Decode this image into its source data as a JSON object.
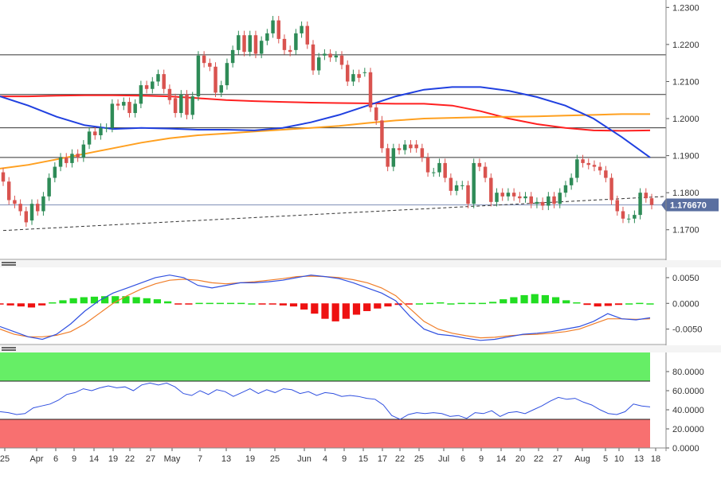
{
  "chart_data": [
    {
      "type": "candlestick",
      "panel": "price",
      "instrument_price": "1.176670",
      "ylim": [
        1.162,
        1.232
      ],
      "y_ticks": [
        "1.2300",
        "1.2200",
        "1.2100",
        "1.2000",
        "1.1900",
        "1.1800",
        "1.1700"
      ],
      "horizontal_levels": [
        1.2172,
        1.2065,
        1.1975,
        1.1895
      ],
      "current_price_line": 1.1767,
      "trendline": {
        "from": [
          0,
          1.1698
        ],
        "to": [
          138,
          1.179
        ],
        "style": "dashed"
      },
      "ma_series": [
        {
          "color": "#ff2020",
          "values": [
            1.206,
            1.206,
            1.2062,
            1.2063,
            1.2063,
            1.2062,
            1.206,
            1.2055,
            1.205,
            1.2047,
            1.2045,
            1.2043,
            1.2042,
            1.2041,
            1.204,
            1.204,
            1.2035,
            1.202,
            1.2,
            1.1985,
            1.1975,
            1.1968,
            1.1967,
            1.1968
          ]
        },
        {
          "color": "#ffa020",
          "values": [
            1.1865,
            1.1875,
            1.189,
            1.1905,
            1.192,
            1.1935,
            1.1947,
            1.1955,
            1.196,
            1.1965,
            1.197,
            1.1975,
            1.198,
            1.1988,
            1.1995,
            1.2,
            1.2002,
            1.2004,
            1.2005,
            1.2006,
            1.2008,
            1.201,
            1.2012,
            1.2012
          ]
        },
        {
          "color": "#2040e0",
          "values": [
            1.206,
            1.2035,
            1.2005,
            1.1982,
            1.1972,
            1.1975,
            1.1973,
            1.197,
            1.197,
            1.1968,
            1.1975,
            1.199,
            1.201,
            1.2035,
            1.206,
            1.2078,
            1.2085,
            1.2085,
            1.2075,
            1.2058,
            1.2035,
            1.2,
            1.195,
            1.1895
          ]
        }
      ],
      "candles": [
        [
          1.1855,
          1.183
        ],
        [
          1.183,
          1.178
        ],
        [
          1.178,
          1.177
        ],
        [
          1.177,
          1.175
        ],
        [
          1.175,
          1.172
        ],
        [
          1.1725,
          1.177
        ],
        [
          1.177,
          1.175
        ],
        [
          1.175,
          1.179
        ],
        [
          1.179,
          1.184
        ],
        [
          1.184,
          1.187
        ],
        [
          1.187,
          1.1895
        ],
        [
          1.1895,
          1.188
        ],
        [
          1.188,
          1.1905
        ],
        [
          1.1905,
          1.1895
        ],
        [
          1.1895,
          1.193
        ],
        [
          1.193,
          1.1965
        ],
        [
          1.1965,
          1.1955
        ],
        [
          1.1955,
          1.1975
        ],
        [
          1.1975,
          1.1975
        ],
        [
          1.1975,
          1.204
        ],
        [
          1.204,
          1.2035
        ],
        [
          1.2035,
          1.2045
        ],
        [
          1.2045,
          1.2015
        ],
        [
          1.2015,
          1.204
        ],
        [
          1.204,
          1.209
        ],
        [
          1.209,
          1.208
        ],
        [
          1.208,
          1.21
        ],
        [
          1.21,
          1.212
        ],
        [
          1.212,
          1.208
        ],
        [
          1.208,
          1.205
        ],
        [
          1.2055,
          1.2015
        ],
        [
          1.2015,
          1.2065
        ],
        [
          1.2065,
          1.201
        ],
        [
          1.201,
          1.206
        ],
        [
          1.206,
          1.217
        ],
        [
          1.217,
          1.215
        ],
        [
          1.215,
          1.214
        ],
        [
          1.214,
          1.207
        ],
        [
          1.207,
          1.209
        ],
        [
          1.209,
          1.215
        ],
        [
          1.215,
          1.2185
        ],
        [
          1.2185,
          1.2225
        ],
        [
          1.2225,
          1.218
        ],
        [
          1.218,
          1.2225
        ],
        [
          1.2225,
          1.2175
        ],
        [
          1.2175,
          1.221
        ],
        [
          1.221,
          1.223
        ],
        [
          1.223,
          1.2265
        ],
        [
          1.2265,
          1.2215
        ],
        [
          1.2215,
          1.2185
        ],
        [
          1.2185,
          1.218
        ],
        [
          1.2185,
          1.223
        ],
        [
          1.223,
          1.225
        ],
        [
          1.225,
          1.22
        ],
        [
          1.22,
          1.213
        ],
        [
          1.213,
          1.2165
        ],
        [
          1.217,
          1.2175
        ],
        [
          1.2175,
          1.2165
        ],
        [
          1.2165,
          1.217
        ],
        [
          1.217,
          1.2145
        ],
        [
          1.2145,
          1.21
        ],
        [
          1.21,
          1.212
        ],
        [
          1.212,
          1.211
        ],
        [
          1.2125,
          1.2125
        ],
        [
          1.2125,
          1.203
        ],
        [
          1.203,
          1.1995
        ],
        [
          1.1995,
          1.192
        ],
        [
          1.192,
          1.187
        ],
        [
          1.187,
          1.192
        ],
        [
          1.192,
          1.1915
        ],
        [
          1.1915,
          1.193
        ],
        [
          1.193,
          1.192
        ],
        [
          1.193,
          1.192
        ],
        [
          1.192,
          1.1895
        ],
        [
          1.1895,
          1.1855
        ],
        [
          1.1855,
          1.1855
        ],
        [
          1.1855,
          1.188
        ],
        [
          1.188,
          1.184
        ],
        [
          1.184,
          1.1805
        ],
        [
          1.1805,
          1.182
        ],
        [
          1.182,
          1.182
        ],
        [
          1.182,
          1.177
        ],
        [
          1.177,
          1.188
        ],
        [
          1.188,
          1.187
        ],
        [
          1.187,
          1.184
        ],
        [
          1.184,
          1.1775
        ],
        [
          1.1775,
          1.18
        ],
        [
          1.18,
          1.179
        ],
        [
          1.179,
          1.18
        ],
        [
          1.18,
          1.179
        ],
        [
          1.179,
          1.1785
        ],
        [
          1.1785,
          1.179
        ],
        [
          1.179,
          1.177
        ],
        [
          1.177,
          1.1775
        ],
        [
          1.1775,
          1.1765
        ],
        [
          1.1765,
          1.179
        ],
        [
          1.179,
          1.177
        ],
        [
          1.177,
          1.18
        ],
        [
          1.18,
          1.182
        ],
        [
          1.182,
          1.184
        ],
        [
          1.184,
          1.189
        ],
        [
          1.189,
          1.188
        ],
        [
          1.188,
          1.1875
        ],
        [
          1.1875,
          1.187
        ],
        [
          1.187,
          1.186
        ],
        [
          1.186,
          1.184
        ],
        [
          1.184,
          1.178
        ],
        [
          1.178,
          1.175
        ],
        [
          1.175,
          1.173
        ],
        [
          1.173,
          1.173
        ],
        [
          1.173,
          1.174
        ],
        [
          1.174,
          1.18
        ],
        [
          1.18,
          1.1785
        ],
        [
          1.1785,
          1.1767
        ]
      ]
    },
    {
      "type": "macd",
      "panel": "macd",
      "ylim": [
        -0.008,
        0.007
      ],
      "y_ticks": [
        "0.0050",
        "0.0000",
        "-0.0050"
      ],
      "macd_line": [
        -0.0045,
        -0.0055,
        -0.0065,
        -0.007,
        -0.006,
        -0.004,
        -0.0015,
        0.0005,
        0.002,
        0.003,
        0.004,
        0.005,
        0.0055,
        0.005,
        0.0035,
        0.003,
        0.0035,
        0.004,
        0.004,
        0.0042,
        0.0045,
        0.005,
        0.0055,
        0.0052,
        0.0048,
        0.004,
        0.003,
        0.002,
        0.0005,
        -0.0025,
        -0.005,
        -0.006,
        -0.0063,
        -0.0068,
        -0.0072,
        -0.007,
        -0.0065,
        -0.006,
        -0.0058,
        -0.0055,
        -0.005,
        -0.0045,
        -0.0035,
        -0.002,
        -0.003,
        -0.0032,
        -0.0028
      ],
      "signal_line": [
        -0.005,
        -0.006,
        -0.0065,
        -0.0065,
        -0.0062,
        -0.0055,
        -0.004,
        -0.002,
        0.0,
        0.0015,
        0.0028,
        0.0038,
        0.0045,
        0.0047,
        0.0045,
        0.004,
        0.0038,
        0.004,
        0.0042,
        0.0045,
        0.0048,
        0.0052,
        0.0053,
        0.0052,
        0.005,
        0.0046,
        0.004,
        0.003,
        0.0015,
        -0.001,
        -0.0035,
        -0.005,
        -0.0058,
        -0.0063,
        -0.0067,
        -0.0066,
        -0.0063,
        -0.0061,
        -0.006,
        -0.0058,
        -0.0055,
        -0.005,
        -0.004,
        -0.003,
        -0.003,
        -0.0031,
        -0.003
      ],
      "histogram": [
        -0.0002,
        -0.0004,
        -0.0006,
        -0.0008,
        -0.0004,
        0.0002,
        0.0006,
        0.001,
        0.0012,
        0.0013,
        0.0014,
        0.0014,
        0.0014,
        0.0012,
        0.001,
        0.0008,
        0.0004,
        -0.0002,
        -0.0002,
        0.0001,
        0.0001,
        0.0001,
        0.0001,
        0.0001,
        0.0,
        -0.0001,
        -0.0002,
        -0.0004,
        -0.0006,
        -0.0012,
        -0.002,
        -0.003,
        -0.0035,
        -0.003,
        -0.0022,
        -0.0015,
        -0.001,
        -0.0006,
        -0.0003,
        -0.0001,
        0.0,
        0.0001,
        0.0002,
        0.0,
        0.0001,
        0.0001,
        0.0001,
        0.0003,
        0.0008,
        0.0012,
        0.0016,
        0.0018,
        0.0016,
        0.0012,
        0.0006,
        0.0002,
        -0.0003,
        -0.0006,
        -0.0005,
        -0.0003,
        0.0,
        0.0001,
        0.0
      ]
    },
    {
      "type": "line",
      "panel": "rsi",
      "ylim": [
        0,
        100
      ],
      "y_ticks": [
        "80.0000",
        "60.0000",
        "40.0000",
        "20.0000",
        "0.0000"
      ],
      "overbought": 70,
      "oversold": 30,
      "values": [
        38,
        37,
        35,
        36,
        42,
        44,
        46,
        50,
        56,
        58,
        62,
        60,
        63,
        65,
        63,
        64,
        60,
        66,
        68,
        66,
        68,
        64,
        57,
        55,
        60,
        56,
        61,
        59,
        54,
        58,
        62,
        57,
        61,
        58,
        62,
        61,
        57,
        59,
        55,
        58,
        57,
        54,
        55,
        54,
        52,
        51,
        45,
        34,
        30,
        35,
        37,
        36,
        37,
        36,
        33,
        34,
        31,
        37,
        36,
        39,
        33,
        37,
        38,
        36,
        40,
        44,
        49,
        53,
        51,
        52,
        48,
        45,
        40,
        36,
        35,
        38,
        46,
        44,
        43
      ],
      "x_labels": [
        "25",
        "Apr",
        "6",
        "9",
        "14",
        "19",
        "22",
        "27",
        "May",
        "7",
        "13",
        "19",
        "25",
        "Jun",
        "4",
        "9",
        "15",
        "17",
        "22",
        "25",
        "Jul",
        "6",
        "9",
        "14",
        "20",
        "22",
        "27",
        "Aug",
        "5",
        "10",
        "13",
        "18"
      ]
    }
  ]
}
